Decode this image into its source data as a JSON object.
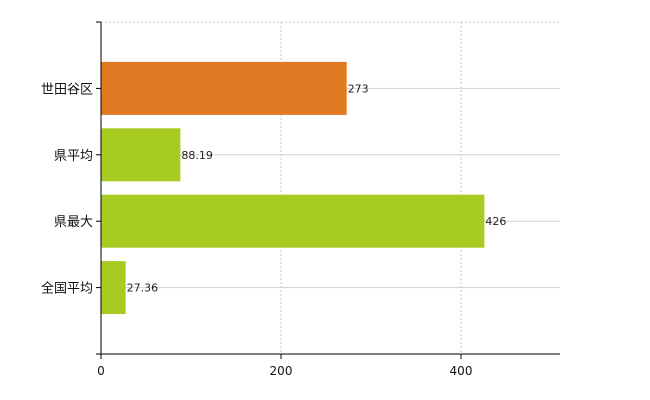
{
  "chart_data": {
    "type": "bar",
    "orientation": "horizontal",
    "categories": [
      "世田谷区",
      "県平均",
      "県最大",
      "全国平均"
    ],
    "values": [
      273,
      88.19,
      426,
      27.36
    ],
    "data_labels": [
      "273",
      "88.19",
      "426",
      "27.36"
    ],
    "colors": [
      "#e07b23",
      "#a8cb22",
      "#a8cb22",
      "#a8cb22"
    ],
    "xlim": [
      0,
      510
    ],
    "xticks": [
      0,
      200,
      400
    ],
    "xtick_labels": [
      "0",
      "200",
      "400"
    ],
    "grid": true,
    "title": "",
    "xlabel": "",
    "ylabel": ""
  }
}
